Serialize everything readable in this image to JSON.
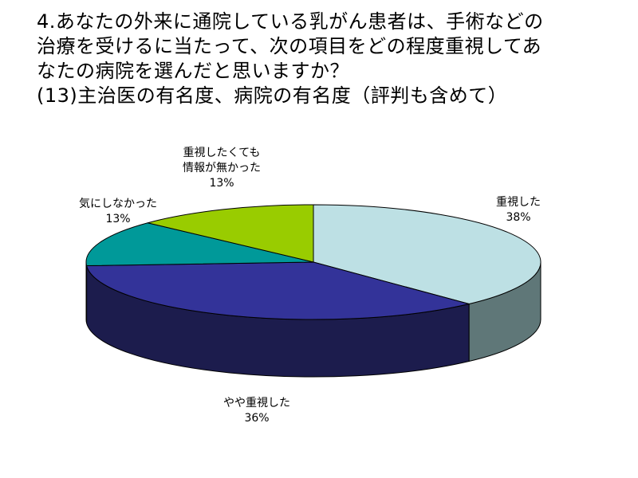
{
  "title_lines": [
    "4.あなたの外来に通院している乳がん患者は、手術などの",
    "治療を受けるに当たって、次の項目をどの程度重視してあ",
    "なたの病院を選んだと思いますか？",
    "(13)主治医の有名度、病院の有名度（評判も含めて）"
  ],
  "chart_data": {
    "type": "pie",
    "style": "3d",
    "slices": [
      {
        "label_lines": [
          "重視した"
        ],
        "value": 38,
        "value_text": "38%",
        "color": "#bde0e4",
        "side_color": "#5f7778"
      },
      {
        "label_lines": [
          "やや重視した"
        ],
        "value": 36,
        "value_text": "36%",
        "color": "#333399",
        "side_color": "#1c1c4d"
      },
      {
        "label_lines": [
          "気にしなかった"
        ],
        "value": 13,
        "value_text": "13%",
        "color": "#009999",
        "side_color": "#005555"
      },
      {
        "label_lines": [
          "重視したくても",
          "情報が無かった"
        ],
        "value": 13,
        "value_text": "13%",
        "color": "#99cc00",
        "side_color": "#557000"
      }
    ]
  }
}
